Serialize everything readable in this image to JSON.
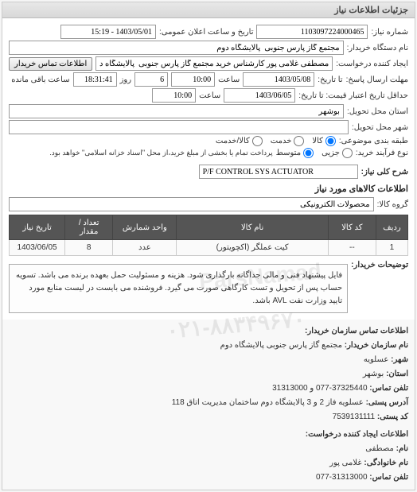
{
  "panel_title": "جزئیات اطلاعات نیاز",
  "form": {
    "need_number_label": "شماره نیاز:",
    "need_number": "1103097224000465",
    "announce_label": "تاریخ و ساعت اعلان عمومی:",
    "announce_value": "1403/05/01 - 15:19",
    "requester_label": "نام دستگاه خریدار:",
    "requester_value": "مجتمع گاز پارس جنوبی  پالایشگاه دوم",
    "creator_label": "ایجاد کننده درخواست:",
    "creator_value": "مصطفی غلامی پور کارشناس خرید مجتمع گاز پارس جنوبی  پالایشگاه دوم",
    "contact_btn": "اطلاعات تماس خریدار",
    "deadline_label": "مهلت ارسال پاسخ:",
    "deadline_to_label": "تا تاریخ:",
    "deadline_date": "1403/05/08",
    "time_label": "ساعت",
    "deadline_time": "10:00",
    "days_label": "روز",
    "days_value": "6",
    "remain_time": "18:31:41",
    "remain_label": "ساعت باقی مانده",
    "validity_label": "حداقل تاریخ اعتبار قیمت: تا تاریخ:",
    "validity_date": "1403/06/05",
    "validity_time": "10:00",
    "province_label": "استان محل تحویل:",
    "province_value": "بوشهر",
    "city_label": "شهر محل تحویل:",
    "category_label": "طبقه بندی موضوعی:",
    "radio_goods": "کالا",
    "radio_service": "خدمت",
    "radio_goods_service": "کالا/خدمت",
    "purchase_type_label": "نوع فرآیند خرید:",
    "radio_small": "جزیی",
    "radio_medium": "متوسط",
    "purchase_note": "پرداخت تمام یا بخشی از مبلغ خرید،از محل \"اسناد خزانه اسلامی\" خواهد بود.",
    "need_desc_label": "شرح کلی نیاز:",
    "need_desc_value": "P/F CONTROL SYS ACTUATOR",
    "items_section_title": "اطلاعات کالاهای مورد نیاز",
    "group_label": "گروه کالا:",
    "group_value": "محصولات الکترونیکی"
  },
  "table": {
    "columns": [
      "ردیف",
      "کد کالا",
      "نام کالا",
      "واحد شمارش",
      "تعداد / مقدار",
      "تاریخ نیاز"
    ],
    "col_widths": [
      "8%",
      "12%",
      "38%",
      "16%",
      "12%",
      "14%"
    ],
    "rows": [
      [
        "1",
        "--",
        "کیت عملگر (اکچویتور)",
        "عدد",
        "8",
        "1403/06/05"
      ]
    ]
  },
  "notes": {
    "label": "توضیحات خریدار:",
    "text": "فایل پیشنهاد فنی و مالی جداگانه بارگذاری شود. هزینه و مسئولیت حمل بعهده برنده می باشد. تسویه حساب پس از تحویل و تست کارگاهی صورت می گیرد. فروشنده می بایست در لیست منابع مورد تایید وزارت نفت AVL باشد."
  },
  "contact": {
    "section_title": "اطلاعات تماس سازمان خریدار:",
    "org_label": "نام سازمان خریدار:",
    "org_value": "مجتمع گاز پارس جنوبی پالایشگاه دوم",
    "city_label": "شهر:",
    "city_value": "عسلویه",
    "province_label": "استان:",
    "province_value": "بوشهر",
    "phone_label": "تلفن تماس:",
    "phone_value": "37325440-077 و 31313000",
    "address_label": "آدرس پستی:",
    "address_value": "عسلویه فاز 2 و 3 پالایشگاه دوم ساختمان مدیریت اتاق 118",
    "postal_label": "کد پستی:",
    "postal_value": "7539131111",
    "creator_section": "اطلاعات ایجاد کننده درخواست:",
    "name_label": "نام:",
    "name_value": "مصطفی",
    "family_label": "نام خانوادگی:",
    "family_value": "غلامی پور",
    "creator_phone_label": "تلفن تماس:",
    "creator_phone_value": "31313000-077"
  },
  "watermark": {
    "line1": "ParsNamad",
    "line2": "۰۲۱-۸۸۳۴۹۶۷۰"
  },
  "colors": {
    "header_bg": "#e0e0e0",
    "table_header_bg": "#555555",
    "table_header_fg": "#ffffff",
    "border": "#cccccc"
  }
}
